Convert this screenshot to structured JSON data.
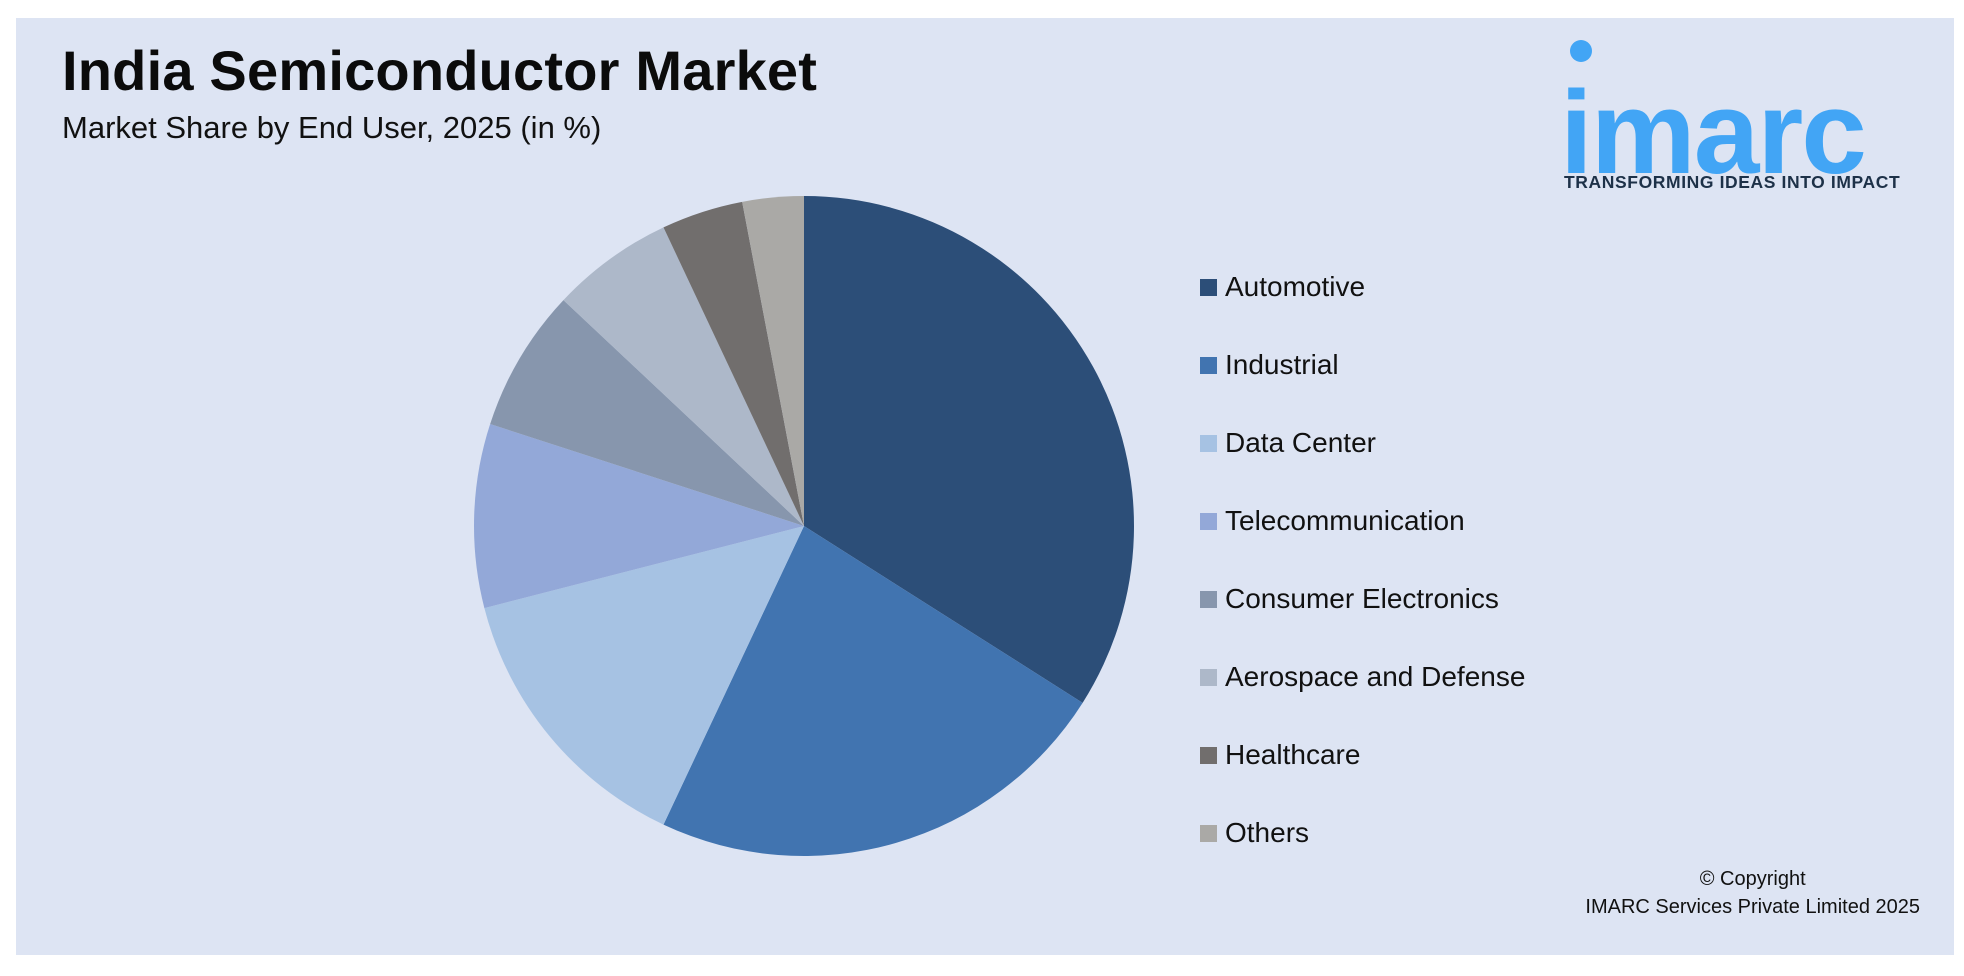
{
  "header": {
    "title": "India Semiconductor Market",
    "subtitle": "Market Share by End User, 2025 (in %)"
  },
  "logo": {
    "wordmark": "imarc",
    "tagline": "TRANSFORMING IDEAS INTO IMPACT",
    "color": "#42a5f5"
  },
  "chart_data": {
    "type": "pie",
    "title": "India Semiconductor Market",
    "subtitle": "Market Share by End User, 2025 (in %)",
    "categories": [
      "Automotive",
      "Industrial",
      "Data Center",
      "Telecommunication",
      "Consumer Electronics",
      "Aerospace and Defense",
      "Healthcare",
      "Others"
    ],
    "values": [
      34,
      23,
      14,
      9,
      7,
      6,
      4,
      3
    ],
    "colors": [
      "#2c4e78",
      "#4174b0",
      "#a6c2e3",
      "#93a8d8",
      "#8796ad",
      "#adb8c9",
      "#716e6d",
      "#aaa9a6"
    ],
    "start_angle_deg": 0,
    "direction": "clockwise",
    "legend_position": "right"
  },
  "footer": {
    "copyright_line1": "© Copyright",
    "copyright_line2": "IMARC Services Private Limited 2025"
  }
}
